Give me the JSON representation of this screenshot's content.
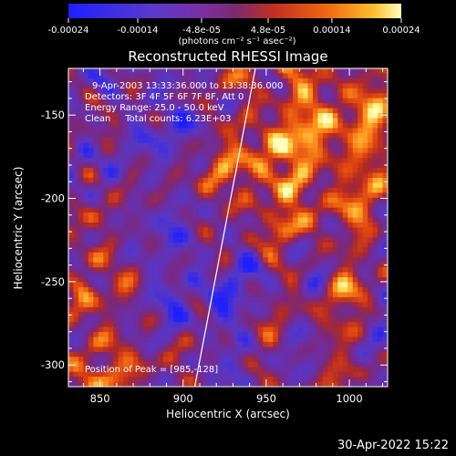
{
  "chart_data": {
    "type": "heatmap",
    "title": "Reconstructed RHESSI Image",
    "xlabel": "Heliocentric X (arcsec)",
    "ylabel": "Heliocentric Y (arcsec)",
    "xlim": [
      831,
      1023
    ],
    "ylim": [
      -313,
      -122
    ],
    "x_ticks": [
      850,
      900,
      950,
      1000
    ],
    "y_ticks": [
      -150,
      -200,
      -250,
      -300
    ],
    "colorbar": {
      "range": [
        -0.00024,
        0.00024
      ],
      "tick_values": [
        -0.00024,
        -0.00014,
        -4.8e-05,
        4.8e-05,
        0.00014,
        0.00024
      ],
      "tick_labels": [
        "-0.00024",
        "-0.00014",
        "-4.8e-05",
        "4.8e-05",
        "0.00014",
        "0.00024"
      ],
      "units_label": "(photons cm⁻² s⁻¹ asec⁻²)"
    },
    "annotations": {
      "time": "9-Apr-2003 13:33:36.000 to 13:38:36.000",
      "detectors": "Detectors: 3F 4F 5F 6F 7F 8F, Att 0",
      "energy": "Energy Range: 25.0 - 50.0 keV",
      "clean": "Clean     Total counts: 6.23E+03",
      "peak": "Position of Peak = [985,-128]"
    },
    "limb_line": {
      "x": [
        907,
        943.5
      ],
      "y": [
        -313,
        -122
      ]
    },
    "colors": {
      "colormap": [
        "#1e1eff",
        "#6a3ab8",
        "#7d2d9c",
        "#8a2a7a",
        "#c0301f",
        "#e85a10",
        "#ffb020",
        "#ffff80"
      ],
      "background": "#000000"
    }
  },
  "footer": {
    "timestamp": "30-Apr-2022 15:22"
  }
}
